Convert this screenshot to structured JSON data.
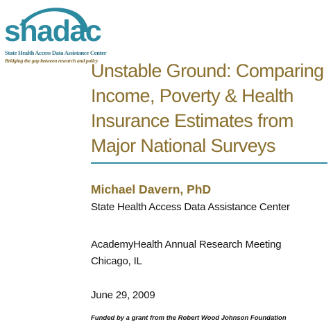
{
  "logo": {
    "wordmark": "shadac",
    "subtitle": "State Health Access Data Assistance Center",
    "tagline": "Bridging the gap between research and policy",
    "arc_color": "#2c8aa0"
  },
  "title": {
    "lines": [
      "Unstable Ground: Comparing",
      "Income, Poverty & Health",
      "Insurance Estimates from",
      "Major National Surveys"
    ],
    "color": "#8a6f2e"
  },
  "presenter": {
    "name": "Michael Davern, PhD",
    "organization": "State Health Access Data Assistance Center"
  },
  "event": {
    "meeting": "AcademyHealth Annual Research Meeting",
    "location": "Chicago, IL",
    "date": "June 29, 2009"
  },
  "funding": "Funded by a grant from the Robert Wood Johnson Foundation",
  "colors": {
    "accent_rule": "#2f8ba2",
    "title_brown": "#8a6f2e",
    "body_text": "#111111"
  }
}
